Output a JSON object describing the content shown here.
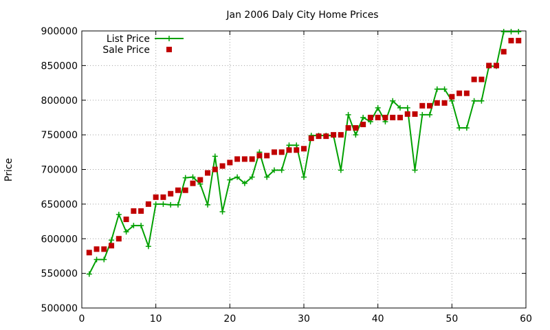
{
  "chart_data": {
    "type": "line",
    "title": "Jan 2006 Daly City Home Prices",
    "xlabel": "",
    "ylabel": "Price",
    "xlim": [
      0,
      60
    ],
    "ylim": [
      500000,
      900000
    ],
    "xticks": [
      0,
      10,
      20,
      30,
      40,
      50,
      60
    ],
    "yticks": [
      500000,
      550000,
      600000,
      650000,
      700000,
      750000,
      800000,
      850000,
      900000
    ],
    "grid": true,
    "legend_position": "top-left",
    "series": [
      {
        "name": "List Price",
        "style": "line-plus",
        "color": "#00a000",
        "x": [
          1,
          2,
          3,
          4,
          5,
          6,
          7,
          8,
          9,
          10,
          11,
          12,
          13,
          14,
          15,
          16,
          17,
          18,
          19,
          20,
          21,
          22,
          23,
          24,
          25,
          26,
          27,
          28,
          29,
          30,
          31,
          32,
          33,
          34,
          35,
          36,
          37,
          38,
          39,
          40,
          41,
          42,
          43,
          44,
          45,
          46,
          47,
          48,
          49,
          50,
          51,
          52,
          53,
          54,
          55,
          56,
          57,
          58,
          59
        ],
        "y": [
          549000,
          570000,
          570000,
          598000,
          635000,
          610000,
          619000,
          619000,
          589000,
          650000,
          650000,
          649000,
          649000,
          688000,
          689000,
          679000,
          649000,
          719000,
          639000,
          685000,
          689000,
          680000,
          689000,
          725000,
          689000,
          699000,
          699000,
          735000,
          735000,
          689000,
          749000,
          749000,
          749000,
          749000,
          699000,
          779000,
          750000,
          775000,
          769000,
          789000,
          769000,
          799000,
          789000,
          789000,
          699000,
          779000,
          779000,
          816000,
          816000,
          799000,
          760000,
          760000,
          799000,
          799000,
          849000,
          849000,
          899000,
          899000,
          899000
        ]
      },
      {
        "name": "Sale Price",
        "style": "square",
        "color": "#c00000",
        "x": [
          1,
          2,
          3,
          4,
          5,
          6,
          7,
          8,
          9,
          10,
          11,
          12,
          13,
          14,
          15,
          16,
          17,
          18,
          19,
          20,
          21,
          22,
          23,
          24,
          25,
          26,
          27,
          28,
          29,
          30,
          31,
          32,
          33,
          34,
          35,
          36,
          37,
          38,
          39,
          40,
          41,
          42,
          43,
          44,
          45,
          46,
          47,
          48,
          49,
          50,
          51,
          52,
          53,
          54,
          55,
          56,
          57,
          58,
          59
        ],
        "y": [
          580000,
          585000,
          585000,
          590000,
          600000,
          628000,
          640000,
          640000,
          650000,
          660000,
          660000,
          665000,
          670000,
          670000,
          680000,
          685000,
          695000,
          700000,
          705000,
          710000,
          715000,
          715000,
          715000,
          720000,
          720000,
          725000,
          725000,
          728000,
          728000,
          730000,
          745000,
          748000,
          748000,
          750000,
          750000,
          760000,
          760000,
          765000,
          775000,
          775000,
          775000,
          775000,
          775000,
          780000,
          780000,
          792000,
          792000,
          796000,
          796000,
          805000,
          810000,
          810000,
          830000,
          830000,
          850000,
          850000,
          870000,
          886000,
          886000
        ]
      }
    ]
  }
}
